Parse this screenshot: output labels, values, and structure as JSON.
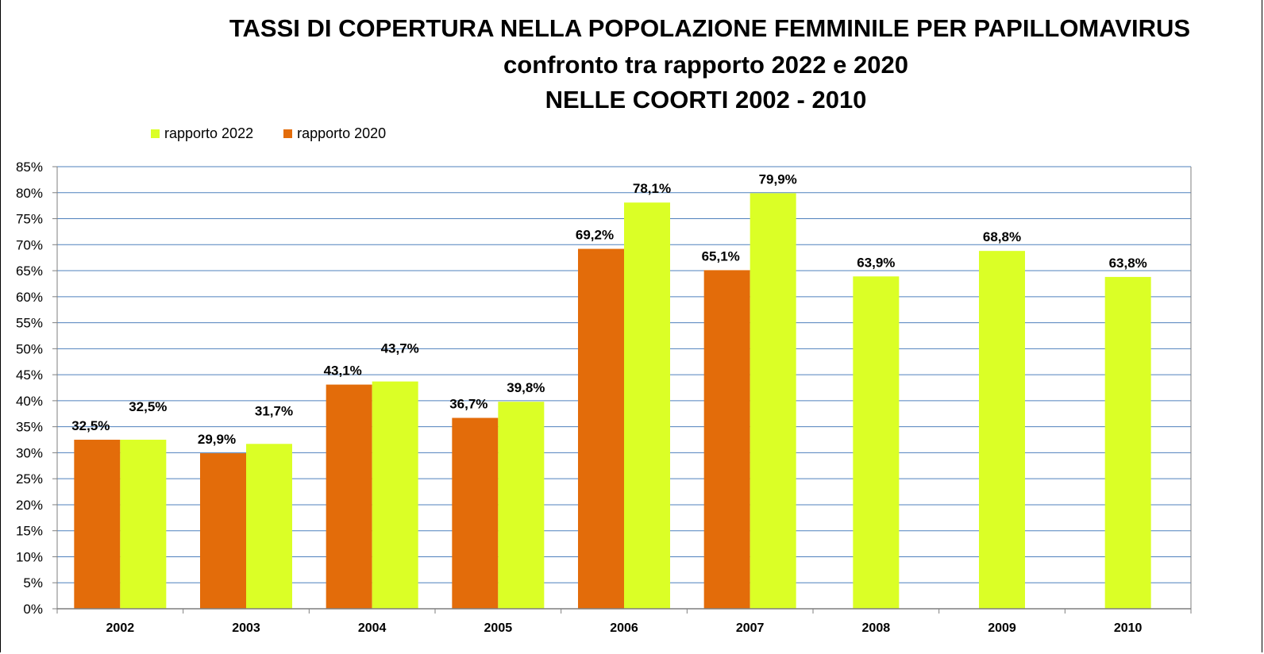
{
  "chart_data": {
    "type": "bar",
    "title": "TASSI DI COPERTURA  NELLA POPOLAZIONE FEMMINILE PER PAPILLOMAVIRUS",
    "subtitle": "confronto tra rapporto 2022 e 2020",
    "subtitle2": "NELLE COORTI 2002 - 2010",
    "xlabel": "",
    "ylabel": "",
    "ylim": [
      0,
      85
    ],
    "ytick_step": 5,
    "yticks": [
      "0%",
      "5%",
      "10%",
      "15%",
      "20%",
      "25%",
      "30%",
      "35%",
      "40%",
      "45%",
      "50%",
      "55%",
      "60%",
      "65%",
      "70%",
      "75%",
      "80%",
      "85%"
    ],
    "grid": true,
    "legend_position": "top-left",
    "categories": [
      "2002",
      "2003",
      "2004",
      "2005",
      "2006",
      "2007",
      "2008",
      "2009",
      "2010"
    ],
    "series": [
      {
        "name": "rapporto 2020",
        "color": "#E36C0A",
        "values": [
          32.5,
          29.9,
          43.1,
          36.7,
          69.2,
          65.1,
          null,
          null,
          null
        ],
        "labels": [
          "32,5%",
          "29,9%",
          "43,1%",
          "36,7%",
          "69,2%",
          "65,1%",
          null,
          null,
          null
        ]
      },
      {
        "name": "rapporto 2022",
        "color": "#DBFF26",
        "values": [
          32.5,
          31.7,
          43.7,
          39.8,
          78.1,
          79.9,
          63.9,
          68.8,
          63.8
        ],
        "labels": [
          "32,5%",
          "31,7%",
          "43,7%",
          "39,8%",
          "78,1%",
          "79,9%",
          "63,9%",
          "68,8%",
          "63,8%"
        ]
      }
    ]
  },
  "legend": {
    "items": [
      {
        "label": "rapporto 2022",
        "color": "#DBFF26"
      },
      {
        "label": "rapporto 2020",
        "color": "#E36C0A"
      }
    ]
  },
  "colors": {
    "grid": "#4F81BD",
    "axis": "#7F7F7F",
    "text": "#000000"
  }
}
